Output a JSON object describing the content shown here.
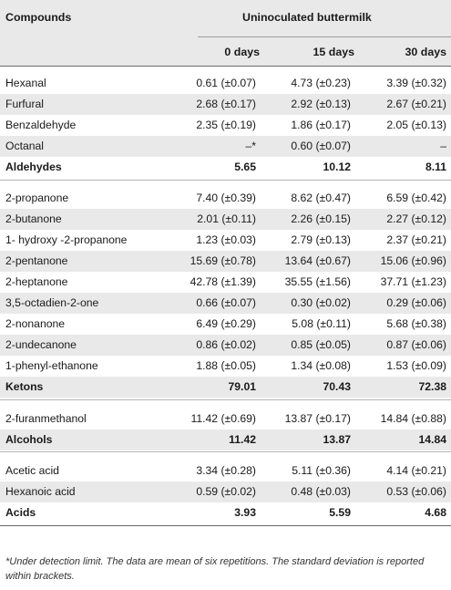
{
  "header": {
    "compounds_label": "Compounds",
    "group_label": "Uninoculated buttermilk",
    "day_labels": [
      "0 days",
      "15 days",
      "30 days"
    ]
  },
  "rows": [
    {
      "name": "Hexanal",
      "values": [
        "0.61 (±0.07)",
        "4.73 (±0.23)",
        "3.39 (±0.32)"
      ]
    },
    {
      "name": "Furfural",
      "values": [
        "2.68 (±0.17)",
        "2.92 (±0.13)",
        "2.67 (±0.21)"
      ]
    },
    {
      "name": "Benzaldehyde",
      "values": [
        "2.35 (±0.19)",
        "1.86 (±0.17)",
        "2.05 (±0.13)"
      ]
    },
    {
      "name": "Octanal",
      "values": [
        "–*",
        "0.60 (±0.07)",
        "–"
      ]
    },
    {
      "name": "Aldehydes",
      "values": [
        "5.65",
        "10.12",
        "8.11"
      ],
      "total": true
    },
    {
      "name": "2-propanone",
      "values": [
        "7.40 (±0.39)",
        "8.62 (±0.47)",
        "6.59 (±0.42)"
      ]
    },
    {
      "name": "2-butanone",
      "values": [
        "2.01 (±0.11)",
        "2.26 (±0.15)",
        "2.27 (±0.12)"
      ]
    },
    {
      "name": "1- hydroxy -2-propanone",
      "values": [
        "1.23 (±0.03)",
        "2.79 (±0.13)",
        "2.37 (±0.21)"
      ]
    },
    {
      "name": "2-pentanone",
      "values": [
        "15.69 (±0.78)",
        "13.64 (±0.67)",
        "15.06 (±0.96)"
      ]
    },
    {
      "name": "2-heptanone",
      "values": [
        "42.78 (±1.39)",
        "35.55 (±1.56)",
        "37.71 (±1.23)"
      ]
    },
    {
      "name": "3,5-octadien-2-one",
      "values": [
        "0.66 (±0.07)",
        "0.30 (±0.02)",
        "0.29 (±0.06)"
      ]
    },
    {
      "name": "2-nonanone",
      "values": [
        "6.49 (±0.29)",
        "5.08 (±0.11)",
        "5.68 (±0.38)"
      ]
    },
    {
      "name": "2-undecanone",
      "values": [
        "0.86 (±0.02)",
        "0.85 (±0.05)",
        "0.87 (±0.06)"
      ]
    },
    {
      "name": "1-phenyl-ethanone",
      "values": [
        "1.88 (±0.05)",
        "1.34 (±0.08)",
        "1.53 (±0.09)"
      ]
    },
    {
      "name": "Ketons",
      "values": [
        "79.01",
        "70.43",
        "72.38"
      ],
      "total": true
    },
    {
      "name": "2-furanmethanol",
      "values": [
        "11.42 (±0.69)",
        "13.87 (±0.17)",
        "14.84 (±0.88)"
      ]
    },
    {
      "name": "Alcohols",
      "values": [
        "11.42",
        "13.87",
        "14.84"
      ],
      "total": true
    },
    {
      "name": "Acetic acid",
      "values": [
        "3.34 (±0.28)",
        "5.11 (±0.36)",
        "4.14 (±0.21)"
      ]
    },
    {
      "name": "Hexanoic acid",
      "values": [
        "0.59 (±0.02)",
        "0.48 (±0.03)",
        "0.53 (±0.06)"
      ]
    },
    {
      "name": "Acids",
      "values": [
        "3.93",
        "5.59",
        "4.68"
      ],
      "total": true
    }
  ],
  "footnote": "*Under detection limit. The data are mean of six repetitions. The standard deviation is reported within brackets."
}
